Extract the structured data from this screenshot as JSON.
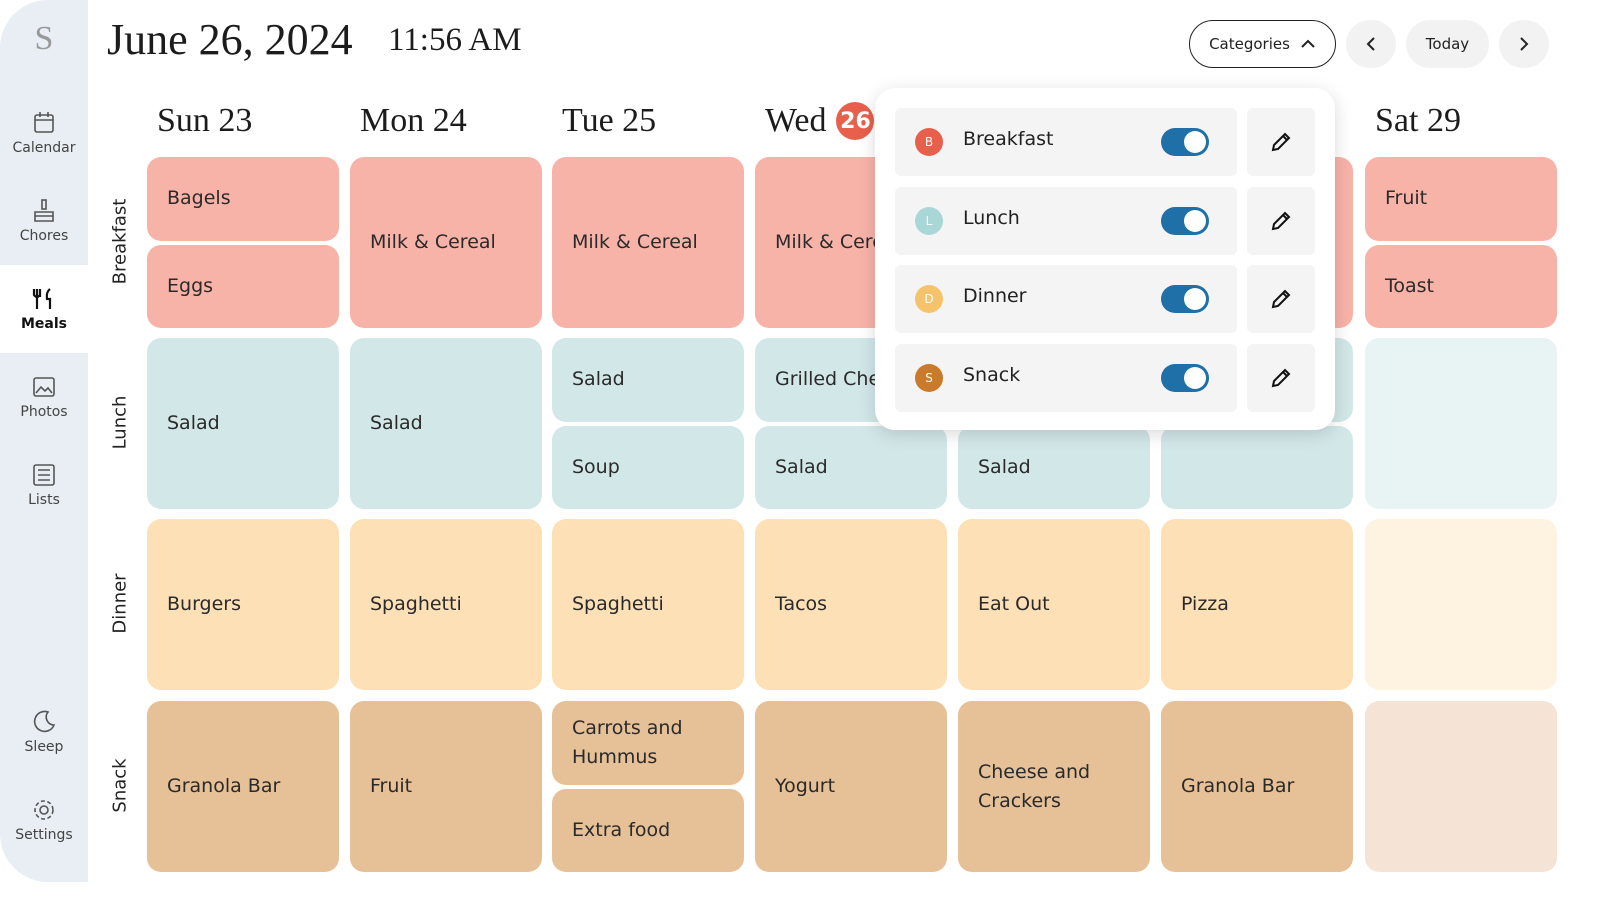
{
  "sidebar": {
    "logo": "S",
    "items": [
      "Calendar",
      "Chores",
      "Meals",
      "Photos",
      "Lists",
      "Sleep",
      "Settings"
    ],
    "selected": 2
  },
  "header": {
    "date": "June 26, 2024",
    "time": "11:56 AM",
    "categories_button": "Categories",
    "today_button": "Today"
  },
  "days": [
    {
      "label": "Sun 23"
    },
    {
      "label": "Mon 24"
    },
    {
      "label": "Tue 25"
    },
    {
      "label": "Wed",
      "badge": "26"
    },
    null,
    null,
    {
      "label": "Sat 29"
    }
  ],
  "meal_rows": [
    "Breakfast",
    "Lunch",
    "Dinner",
    "Snack"
  ],
  "grid": [
    [
      [
        "Bagels",
        "Eggs"
      ],
      [
        "Salad"
      ],
      [
        "Burgers"
      ],
      [
        "Granola Bar"
      ]
    ],
    [
      [
        "Milk & Cereal"
      ],
      [
        "Salad"
      ],
      [
        "Spaghetti"
      ],
      [
        "Fruit"
      ]
    ],
    [
      [
        "Milk & Cereal"
      ],
      [
        "Salad",
        "Soup"
      ],
      [
        "Spaghetti"
      ],
      [
        "Carrots and Hummus",
        "Extra food"
      ]
    ],
    [
      [
        "Milk & Cere"
      ],
      [
        "Grilled Che",
        "Salad"
      ],
      [
        "Tacos"
      ],
      [
        "Yogurt"
      ]
    ],
    [
      [
        null
      ],
      [
        null,
        "Salad"
      ],
      [
        "Eat Out"
      ],
      [
        "Cheese and Crackers"
      ]
    ],
    [
      [
        null
      ],
      [
        null,
        null
      ],
      [
        "Pizza"
      ],
      [
        "Granola Bar"
      ]
    ],
    [
      [
        "Fruit",
        "Toast"
      ],
      [],
      [],
      []
    ]
  ],
  "categories_popup": [
    {
      "initial": "B",
      "name": "Breakfast",
      "color": "#e8604c",
      "enabled": true
    },
    {
      "initial": "L",
      "name": "Lunch",
      "color": "#a9d6d6",
      "enabled": true
    },
    {
      "initial": "D",
      "name": "Dinner",
      "color": "#f6c26c",
      "enabled": true
    },
    {
      "initial": "S",
      "name": "Snack",
      "color": "#c97b2b",
      "enabled": true
    }
  ]
}
